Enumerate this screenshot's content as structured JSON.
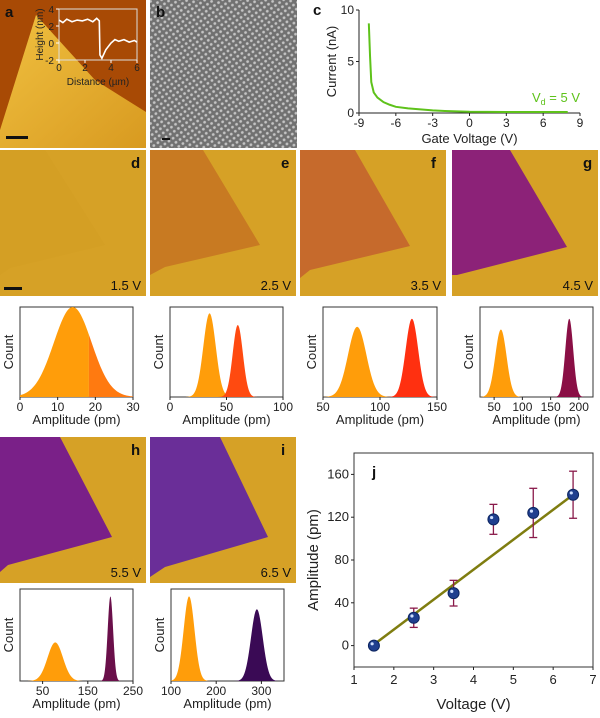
{
  "figure": {
    "panel_labels": {
      "a": "a",
      "b": "b",
      "c": "c",
      "d": "d",
      "e": "e",
      "f": "f",
      "g": "g",
      "h": "h",
      "i": "i",
      "j": "j"
    },
    "bias_labels": {
      "d": "1.5 V",
      "e": "2.5 V",
      "f": "3.5 V",
      "g": "4.5 V",
      "h": "5.5 V",
      "i": "6.5 V"
    },
    "colors": {
      "substrate": "#d6a126",
      "green": "#5ec21a",
      "fit": "#7f7d10",
      "point": "#1f3f8f",
      "errbar": "#8a1a4a"
    }
  },
  "chart_data": [
    {
      "id": "a-inset",
      "type": "line",
      "xlabel": "Distance (µm)",
      "ylabel": "Height (nm)",
      "xlim": [
        0,
        6
      ],
      "ylim": [
        -2,
        4
      ],
      "xticks": [
        "0",
        "2",
        "4",
        "6"
      ],
      "yticks": [
        "-2",
        "0",
        "2",
        "4"
      ],
      "x": [
        0,
        0.3,
        0.6,
        1,
        1.4,
        1.8,
        2.2,
        2.6,
        2.9,
        3.1,
        3.15,
        3.3,
        3.6,
        4,
        4.3,
        4.6,
        5,
        5.4,
        5.8,
        6
      ],
      "y": [
        2.7,
        2.4,
        2.8,
        2.5,
        2.7,
        2.6,
        2.8,
        2.5,
        2.9,
        2.6,
        -1.4,
        -1.8,
        -0.8,
        0,
        0.4,
        0.2,
        0.4,
        0.1,
        0.3,
        0.1
      ]
    },
    {
      "id": "c",
      "type": "line",
      "xlabel": "Gate Voltage (V)",
      "ylabel": "Current (nA)",
      "xlim": [
        -9,
        9
      ],
      "ylim": [
        0,
        10
      ],
      "xticks": [
        "-9",
        "-6",
        "-3",
        "0",
        "3",
        "6",
        "9"
      ],
      "yticks": [
        "0",
        "5",
        "10"
      ],
      "annotation": "Vd = 5 V",
      "annotation_main": "V",
      "annotation_sub": "d",
      "annotation_rest": " = 5 V",
      "x": [
        -8.2,
        -8.1,
        -8.0,
        -7.8,
        -7.5,
        -7.0,
        -6.5,
        -6.0,
        -5.0,
        -4.0,
        -3.0,
        -2.0,
        0,
        3,
        6,
        8
      ],
      "y": [
        8.7,
        5.5,
        3.0,
        2.0,
        1.5,
        1.05,
        0.8,
        0.6,
        0.45,
        0.35,
        0.25,
        0.2,
        0.12,
        0.1,
        0.1,
        0.1
      ]
    },
    {
      "id": "hist-d",
      "type": "area",
      "xlabel": "Amplitude (pm)",
      "ylabel": "Count",
      "xlim": [
        0,
        30
      ],
      "xticks": [
        0,
        10,
        20,
        30
      ],
      "peaks": [
        {
          "mean": 14,
          "sigma": 5,
          "height": 1.0,
          "from": 0,
          "to": 18.3,
          "color": "#ff9d0a"
        },
        {
          "mean": 14,
          "sigma": 5,
          "height": 1.0,
          "from": 18.3,
          "to": 30,
          "color": "#ff7a10"
        }
      ]
    },
    {
      "id": "hist-e",
      "type": "area",
      "xlabel": "Amplitude (pm)",
      "ylabel": "Count",
      "xlim": [
        0,
        100
      ],
      "xticks": [
        0,
        50,
        100
      ],
      "peaks": [
        {
          "mean": 35,
          "sigma": 5.5,
          "height": 0.93,
          "color": "#ff9d0a"
        },
        {
          "mean": 60,
          "sigma": 4.5,
          "height": 0.8,
          "color": "#ff4a10"
        }
      ]
    },
    {
      "id": "hist-f",
      "type": "area",
      "xlabel": "Amplitude (pm)",
      "ylabel": "Count",
      "xlim": [
        50,
        150
      ],
      "xticks": [
        50,
        100,
        150
      ],
      "peaks": [
        {
          "mean": 80,
          "sigma": 8,
          "height": 0.78,
          "color": "#ff9d0a"
        },
        {
          "mean": 128,
          "sigma": 5.5,
          "height": 0.87,
          "color": "#ff3010"
        }
      ]
    },
    {
      "id": "hist-g",
      "type": "area",
      "xlabel": "Amplitude (pm)",
      "ylabel": "Count",
      "xlim": [
        25,
        225
      ],
      "xticks": [
        50,
        100,
        150,
        200
      ],
      "peaks": [
        {
          "mean": 62,
          "sigma": 10,
          "height": 0.75,
          "color": "#ff9d0a"
        },
        {
          "mean": 183,
          "sigma": 7,
          "height": 0.87,
          "color": "#8a0f45"
        }
      ]
    },
    {
      "id": "hist-h",
      "type": "area",
      "xlabel": "Amplitude (pm)",
      "ylabel": "Count",
      "xlim": [
        0,
        250
      ],
      "xticks": [
        50,
        150,
        250
      ],
      "peaks": [
        {
          "mean": 78,
          "sigma": 17,
          "height": 0.42,
          "color": "#ff9d0a"
        },
        {
          "mean": 200,
          "sigma": 6,
          "height": 0.92,
          "color": "#6a0f4a"
        }
      ]
    },
    {
      "id": "hist-i",
      "type": "area",
      "xlabel": "Amplitude (pm)",
      "ylabel": "Count",
      "xlim": [
        100,
        350
      ],
      "xticks": [
        100,
        200,
        300
      ],
      "peaks": [
        {
          "mean": 140,
          "sigma": 12,
          "height": 0.92,
          "color": "#ff9d0a"
        },
        {
          "mean": 290,
          "sigma": 13,
          "height": 0.78,
          "color": "#3a0a55"
        }
      ]
    },
    {
      "id": "j",
      "type": "scatter",
      "xlabel": "Voltage (V)",
      "ylabel": "Amplitude (pm)",
      "xlim": [
        1,
        7
      ],
      "ylim": [
        -20,
        180
      ],
      "xticks": [
        "1",
        "2",
        "3",
        "4",
        "5",
        "6",
        "7"
      ],
      "yticks": [
        "0",
        "40",
        "80",
        "120",
        "160"
      ],
      "x": [
        1.5,
        2.5,
        3.5,
        4.5,
        5.5,
        6.5
      ],
      "y": [
        0,
        26,
        49,
        118,
        124,
        141
      ],
      "err": [
        3,
        9,
        12,
        14,
        23,
        22
      ],
      "fit": {
        "x": [
          1.5,
          6.5
        ],
        "y": [
          1,
          141
        ]
      }
    }
  ]
}
